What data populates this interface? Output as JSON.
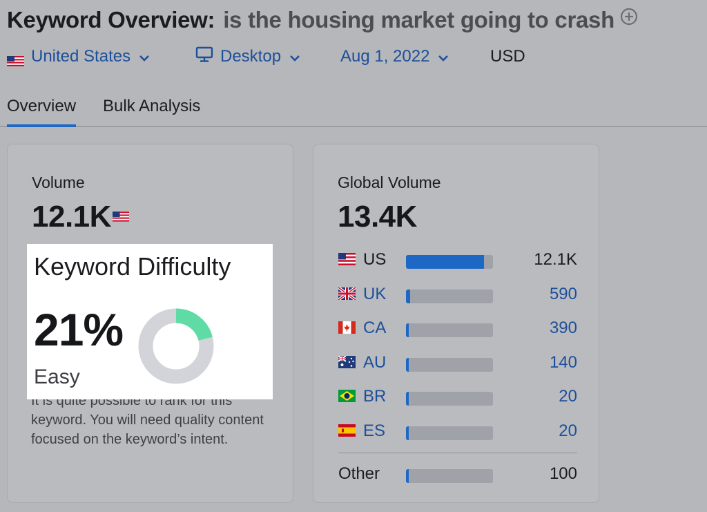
{
  "header": {
    "title": "Keyword Overview:",
    "keyword": "is the housing market going to crash"
  },
  "filters": {
    "country": "United States",
    "device": "Desktop",
    "date": "Aug 1, 2022",
    "currency": "USD"
  },
  "tabs": [
    "Overview",
    "Bulk Analysis"
  ],
  "volume": {
    "label": "Volume",
    "value": "12.1K"
  },
  "keyword_difficulty": {
    "title": "Keyword Difficulty",
    "percent_text": "21%",
    "percent": 21,
    "level": "Easy",
    "description": "It is quite possible to rank for this keyword. You will need quality content focused on the keyword’s intent.",
    "fill_color": "#5fdba5",
    "track_color": "#d2d4d9"
  },
  "global_volume": {
    "label": "Global Volume",
    "value": "13.4K",
    "countries": [
      {
        "code": "US",
        "value_text": "12.1K",
        "value": 12100,
        "flag": "us-flag"
      },
      {
        "code": "UK",
        "value_text": "590",
        "value": 590,
        "flag": "uk-flag"
      },
      {
        "code": "CA",
        "value_text": "390",
        "value": 390,
        "flag": "ca-flag"
      },
      {
        "code": "AU",
        "value_text": "140",
        "value": 140,
        "flag": "au-flag"
      },
      {
        "code": "BR",
        "value_text": "20",
        "value": 20,
        "flag": "br-flag"
      },
      {
        "code": "ES",
        "value_text": "20",
        "value": 20,
        "flag": "es-flag"
      }
    ],
    "other": {
      "label": "Other",
      "value_text": "100",
      "value": 100
    }
  },
  "colors": {
    "accent_blue": "#1d68c4",
    "link_blue": "#1d4f9a"
  }
}
